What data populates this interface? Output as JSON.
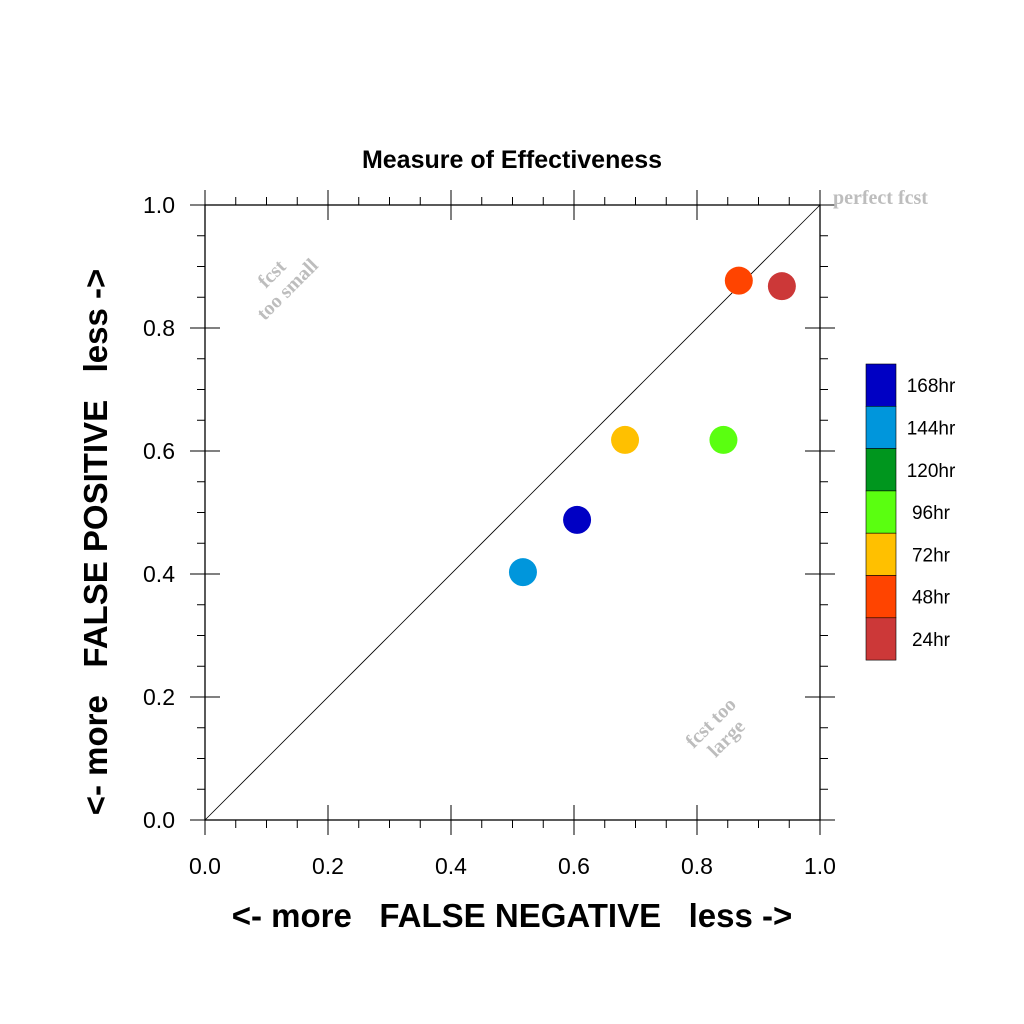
{
  "chart_data": {
    "type": "scatter",
    "title": "Measure of Effectiveness",
    "xlabel": "<- more   FALSE NEGATIVE   less ->",
    "ylabel": "<- more   FALSE POSITIVE   less ->",
    "xlim": [
      0,
      1
    ],
    "ylim": [
      0,
      1
    ],
    "xticks": [
      "0.0",
      "0.2",
      "0.4",
      "0.6",
      "0.8",
      "1.0"
    ],
    "yticks": [
      "0.0",
      "0.2",
      "0.4",
      "0.6",
      "0.8",
      "1.0"
    ],
    "grid": false,
    "reference_line": "diagonal",
    "annotations": {
      "perfect": "perfect fcst",
      "small_line1": "fcst",
      "small_line2": "too small",
      "large_line1": "fcst too",
      "large_line2": "large"
    },
    "legend_position": "right",
    "legend": [
      {
        "label": "168hr",
        "color": "#0000c4"
      },
      {
        "label": "144hr",
        "color": "#0096dc"
      },
      {
        "label": "120hr",
        "color": "#00961e"
      },
      {
        "label": "96hr",
        "color": "#5aff10"
      },
      {
        "label": "72hr",
        "color": "#ffc000"
      },
      {
        "label": "48hr",
        "color": "#ff4400"
      },
      {
        "label": "24hr",
        "color": "#cc3838"
      }
    ],
    "series": [
      {
        "name": "24hr",
        "x": 0.938,
        "y": 0.868,
        "color": "#cc3838"
      },
      {
        "name": "48hr",
        "x": 0.868,
        "y": 0.877,
        "color": "#ff4400"
      },
      {
        "name": "72hr",
        "x": 0.683,
        "y": 0.618,
        "color": "#ffc000"
      },
      {
        "name": "96hr",
        "x": 0.843,
        "y": 0.618,
        "color": "#5aff10"
      },
      {
        "name": "168hr",
        "x": 0.605,
        "y": 0.488,
        "color": "#0000c4"
      },
      {
        "name": "144hr",
        "x": 0.517,
        "y": 0.403,
        "color": "#0096dc"
      }
    ]
  }
}
